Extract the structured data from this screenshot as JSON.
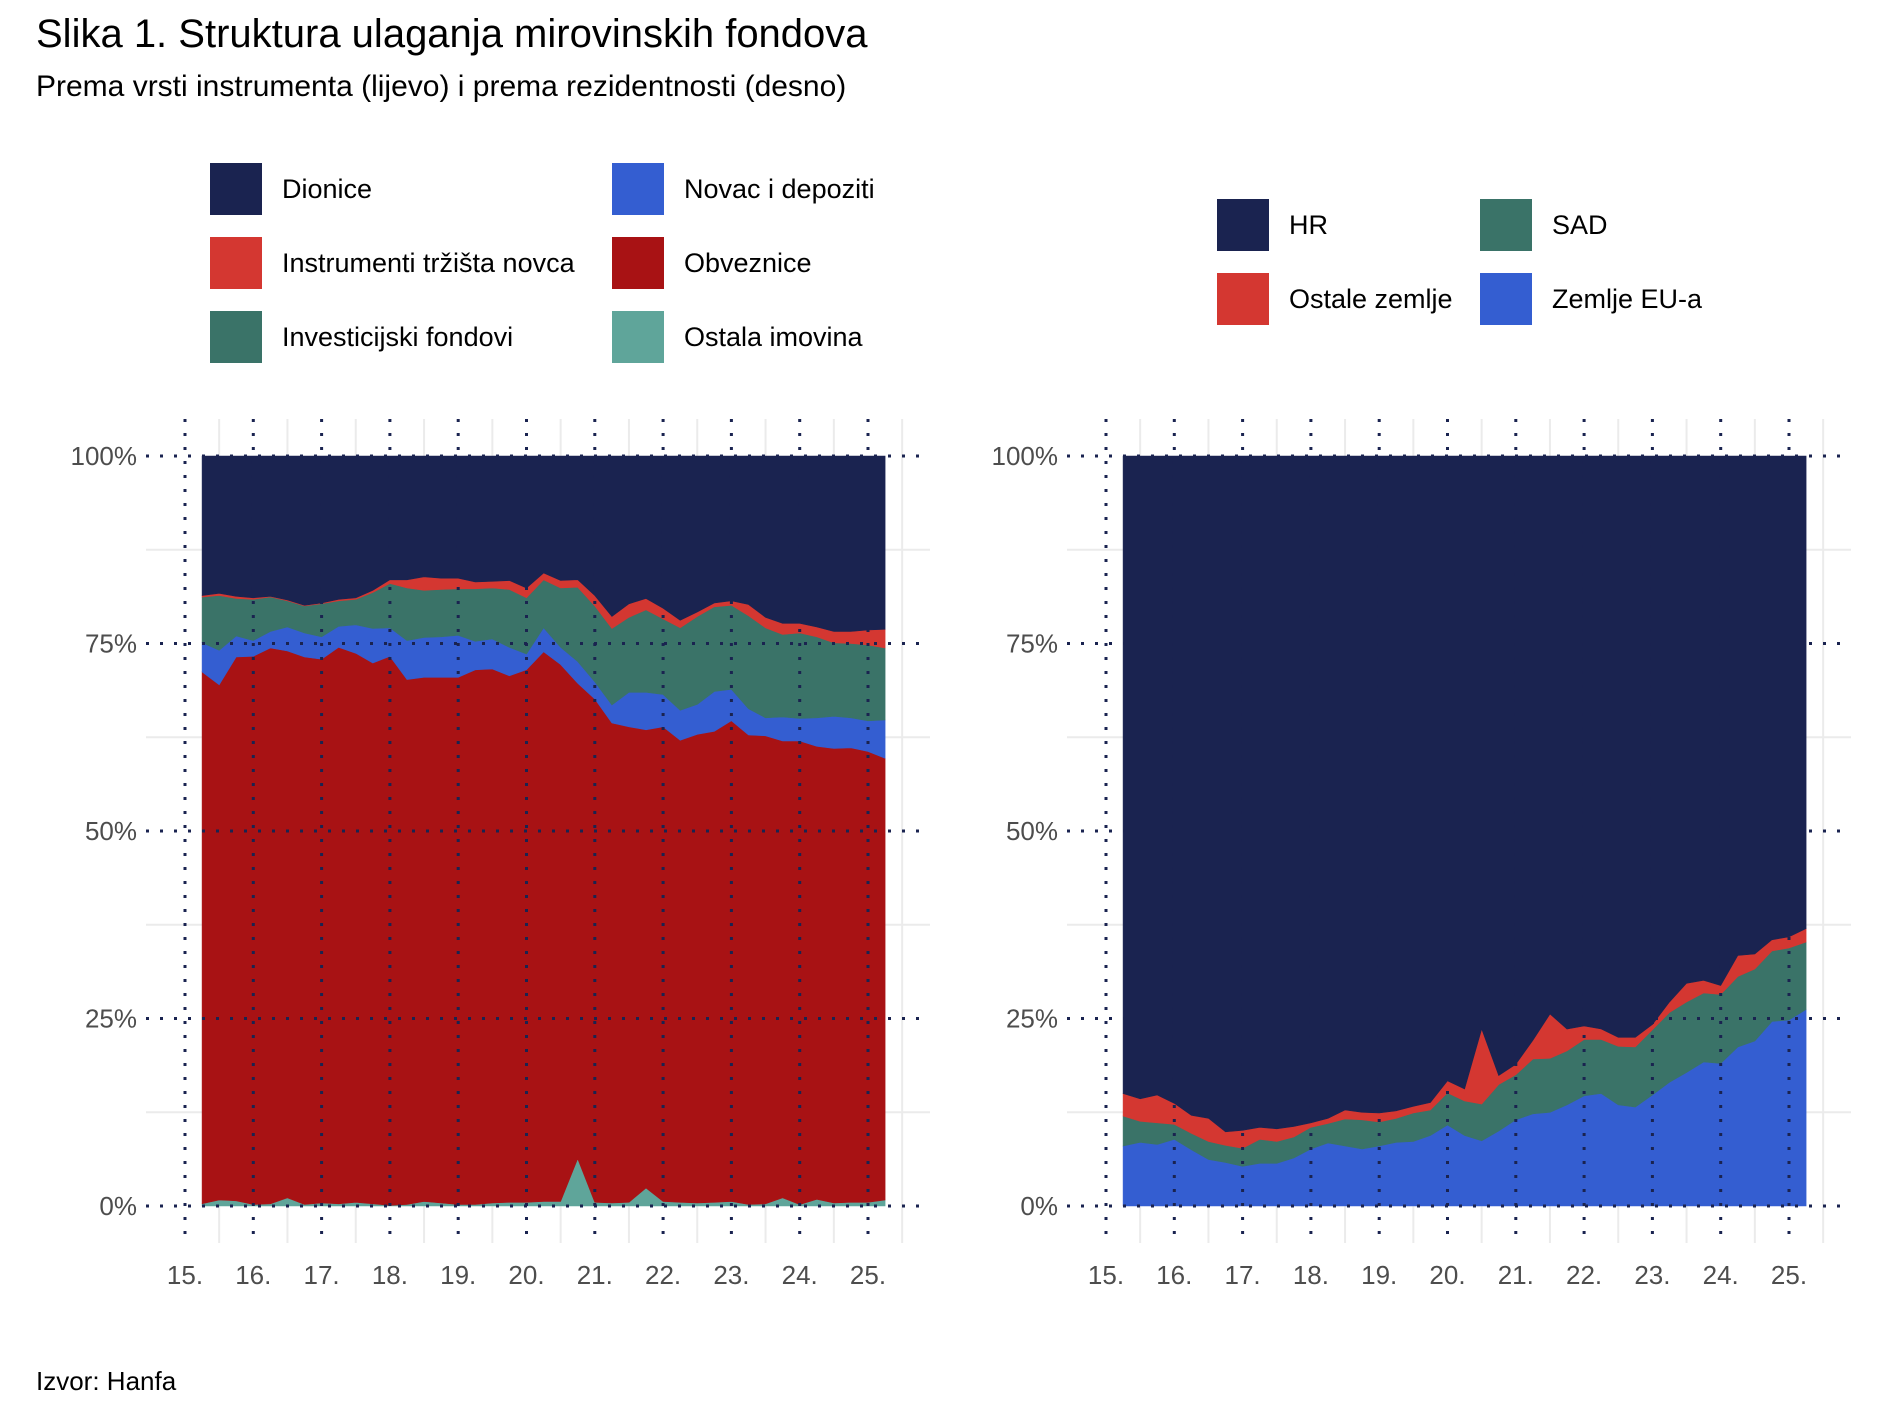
{
  "title": "Slika 1. Struktura ulaganja mirovinskih fondova",
  "subtitle": "Prema vrsti instrumenta (lijevo) i prema rezidentnosti (desno)",
  "source": "Izvor: Hanfa",
  "chart_data": [
    {
      "type": "area",
      "stacked": true,
      "name": "Prema vrsti instrumenta",
      "title": "",
      "xlabel": "",
      "ylabel": "",
      "ylim": [
        0,
        100
      ],
      "xlim": [
        2015.25,
        2025.25
      ],
      "y_ticks": [
        "0%",
        "25%",
        "50%",
        "75%",
        "100%"
      ],
      "y_tick_values": [
        0,
        25,
        50,
        75,
        100
      ],
      "x_ticks": [
        "15.",
        "16.",
        "17.",
        "18.",
        "19.",
        "20.",
        "21.",
        "22.",
        "23.",
        "24.",
        "25."
      ],
      "x_tick_values": [
        2015,
        2016,
        2017,
        2018,
        2019,
        2020,
        2021,
        2022,
        2023,
        2024,
        2025
      ],
      "grid": true,
      "legend_position": "top",
      "x_step": 0.25,
      "x_start": 2015.25,
      "series": [
        {
          "name": "Ostala imovina",
          "color": "#5fa59a",
          "values": [
            0.3,
            0.8,
            0.7,
            0.2,
            0.3,
            1.1,
            0.2,
            0.4,
            0.3,
            0.5,
            0.3,
            0.1,
            0.2,
            0.6,
            0.4,
            0.2,
            0.2,
            0.4,
            0.5,
            0.5,
            0.6,
            0.6,
            6.3,
            0.5,
            0.4,
            0.5,
            2.4,
            0.6,
            0.5,
            0.4,
            0.5,
            0.6,
            0.2,
            0.3,
            1.1,
            0.2,
            0.9,
            0.4,
            0.5,
            0.5,
            0.8
          ]
        },
        {
          "name": "Obveznice",
          "color": "#a81214",
          "values": [
            70.9,
            68.7,
            72.5,
            73.1,
            74.1,
            72.9,
            73.0,
            72.5,
            74.2,
            73.2,
            72.1,
            73.2,
            70.0,
            69.9,
            70.1,
            70.3,
            71.3,
            71.2,
            70.2,
            71.0,
            73.3,
            71.6,
            63.4,
            67.1,
            64.0,
            63.4,
            61.1,
            63.3,
            61.6,
            62.5,
            62.8,
            64.1,
            62.6,
            62.4,
            60.9,
            61.8,
            60.4,
            60.6,
            60.6,
            60.1,
            58.9
          ]
        },
        {
          "name": "Novac i depoziti",
          "color": "#345ed1",
          "values": [
            3.9,
            4.6,
            2.8,
            2.1,
            2.2,
            3.2,
            3.2,
            3.0,
            2.8,
            3.8,
            4.6,
            3.8,
            5.2,
            5.3,
            5.4,
            5.6,
            3.8,
            4.0,
            3.8,
            2.1,
            3.2,
            2.3,
            2.9,
            2.3,
            2.4,
            4.6,
            5.0,
            4.3,
            4.0,
            4.0,
            5.3,
            4.2,
            3.5,
            2.4,
            3.2,
            3.0,
            3.8,
            4.3,
            4.0,
            4.1,
            5.1
          ]
        },
        {
          "name": "Investicijski fondovi",
          "color": "#3a7368",
          "values": [
            6.1,
            7.3,
            5.0,
            5.5,
            4.6,
            3.5,
            3.6,
            4.4,
            3.4,
            3.4,
            4.8,
            5.9,
            7.0,
            6.3,
            6.3,
            6.2,
            7.0,
            6.8,
            7.7,
            7.5,
            6.4,
            7.9,
            9.9,
            10.1,
            10.2,
            10.0,
            11.0,
            10.1,
            11.0,
            11.7,
            11.3,
            11.2,
            12.4,
            12.0,
            11.0,
            11.4,
            10.8,
            9.8,
            9.9,
            10.1,
            9.6
          ]
        },
        {
          "name": "Instrumenti tržišta novca",
          "color": "#d43731",
          "values": [
            0.2,
            0.3,
            0.3,
            0.2,
            0.1,
            0.1,
            0.1,
            0.1,
            0.2,
            0.2,
            0.3,
            0.5,
            1.1,
            1.8,
            1.5,
            1.4,
            0.9,
            0.9,
            1.2,
            1.3,
            0.9,
            1.0,
            1.0,
            1.4,
            1.6,
            1.8,
            1.5,
            1.4,
            1.0,
            0.6,
            0.5,
            0.6,
            1.5,
            1.4,
            1.5,
            1.3,
            1.3,
            1.5,
            1.6,
            2.0,
            2.5
          ]
        },
        {
          "name": "Dionice",
          "color": "#1a2350",
          "values": [
            18.6,
            18.3,
            18.7,
            18.9,
            18.7,
            19.2,
            19.9,
            19.6,
            19.1,
            18.9,
            17.9,
            16.5,
            16.5,
            16.1,
            16.3,
            16.3,
            16.8,
            16.7,
            16.6,
            17.6,
            15.6,
            16.6,
            16.5,
            18.6,
            21.4,
            19.7,
            19.0,
            20.3,
            21.9,
            20.8,
            19.6,
            19.3,
            19.8,
            21.5,
            22.3,
            22.3,
            22.8,
            23.4,
            23.4,
            23.2,
            23.1
          ]
        }
      ]
    },
    {
      "type": "area",
      "stacked": true,
      "name": "Prema rezidentnosti",
      "title": "",
      "xlabel": "",
      "ylabel": "",
      "ylim": [
        0,
        100
      ],
      "xlim": [
        2015.25,
        2025.25
      ],
      "y_ticks": [
        "0%",
        "25%",
        "50%",
        "75%",
        "100%"
      ],
      "y_tick_values": [
        0,
        25,
        50,
        75,
        100
      ],
      "x_ticks": [
        "15.",
        "16.",
        "17.",
        "18.",
        "19.",
        "20.",
        "21.",
        "22.",
        "23.",
        "24.",
        "25."
      ],
      "x_tick_values": [
        2015,
        2016,
        2017,
        2018,
        2019,
        2020,
        2021,
        2022,
        2023,
        2024,
        2025
      ],
      "grid": true,
      "legend_position": "top-right",
      "x_step": 0.25,
      "x_start": 2015.25,
      "series": [
        {
          "name": "Zemlje EU-a",
          "color": "#345ed1",
          "values": [
            8.0,
            8.5,
            8.2,
            8.9,
            7.5,
            6.2,
            5.8,
            5.3,
            5.7,
            5.7,
            6.4,
            7.6,
            8.4,
            8.0,
            7.6,
            8.0,
            8.5,
            8.6,
            9.4,
            10.8,
            9.4,
            8.7,
            10.0,
            11.5,
            12.3,
            12.5,
            13.5,
            14.7,
            15.0,
            13.5,
            13.2,
            14.8,
            16.5,
            17.8,
            19.2,
            19.0,
            21.2,
            22.0,
            24.6,
            24.8,
            26.2
          ]
        },
        {
          "name": "SAD",
          "color": "#3a7368",
          "values": [
            4.0,
            2.8,
            2.9,
            2.0,
            2.2,
            2.4,
            2.3,
            2.4,
            3.2,
            2.9,
            2.8,
            2.9,
            2.6,
            3.6,
            3.9,
            3.2,
            3.2,
            3.8,
            3.4,
            4.3,
            4.6,
            4.9,
            6.2,
            6.0,
            7.3,
            7.2,
            7.2,
            7.5,
            7.2,
            7.8,
            8.0,
            8.7,
            9.3,
            9.4,
            9.2,
            9.2,
            9.4,
            9.6,
            9.4,
            9.6,
            9.0
          ]
        },
        {
          "name": "Ostale zemlje",
          "color": "#d43731",
          "values": [
            3.0,
            3.0,
            3.7,
            2.8,
            2.4,
            3.1,
            1.8,
            2.4,
            1.6,
            1.7,
            1.4,
            0.6,
            0.7,
            1.2,
            1.0,
            1.2,
            1.0,
            0.9,
            1.0,
            1.6,
            1.6,
            10.0,
            1.2,
            1.4,
            2.5,
            5.9,
            2.9,
            1.8,
            1.4,
            1.2,
            1.3,
            0.7,
            1.4,
            2.5,
            1.7,
            1.2,
            2.8,
            2.0,
            1.5,
            1.5,
            1.8
          ]
        },
        {
          "name": "HR",
          "color": "#1a2350",
          "values": [
            85.0,
            85.7,
            85.2,
            86.3,
            87.9,
            88.3,
            90.1,
            89.9,
            89.5,
            89.7,
            89.4,
            88.9,
            88.3,
            87.2,
            87.5,
            87.6,
            87.3,
            86.7,
            86.2,
            83.3,
            84.4,
            76.4,
            82.6,
            81.1,
            77.9,
            74.4,
            76.4,
            76.0,
            76.4,
            77.5,
            77.5,
            75.8,
            72.8,
            70.3,
            69.9,
            70.6,
            66.6,
            66.4,
            64.5,
            64.1,
            63.0
          ]
        }
      ]
    }
  ],
  "legends": [
    {
      "items": [
        "Dionice",
        "Novac i depoziti",
        "Instrumenti tržišta novca",
        "Obveznice",
        "Investicijski fondovi",
        "Ostala imovina"
      ],
      "colors": [
        "#1a2350",
        "#345ed1",
        "#d43731",
        "#a81214",
        "#3a7368",
        "#5fa59a"
      ]
    },
    {
      "items": [
        "HR",
        "SAD",
        "Ostale zemlje",
        "Zemlje EU-a"
      ],
      "colors": [
        "#1a2350",
        "#3a7368",
        "#d43731",
        "#345ed1"
      ]
    }
  ]
}
